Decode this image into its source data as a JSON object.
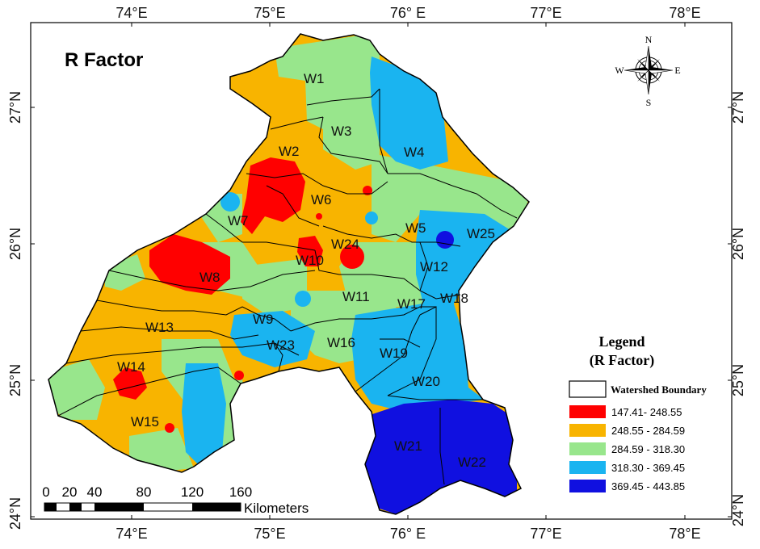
{
  "map": {
    "title": "R Factor",
    "lon_labels": [
      "74°E",
      "75°E",
      "76° E",
      "77°E",
      "78°E"
    ],
    "lat_labels": [
      "27°N",
      "26°N",
      "25°N",
      "24°N"
    ],
    "watersheds": [
      "W1",
      "W2",
      "W3",
      "W4",
      "W5",
      "W6",
      "W7",
      "W8",
      "W9",
      "W10",
      "W11",
      "W12",
      "W13",
      "W14",
      "W15",
      "W16",
      "W17",
      "W18",
      "W19",
      "W20",
      "W21",
      "W22",
      "W23",
      "W24",
      "W25"
    ]
  },
  "compass": {
    "n": "N",
    "s": "S",
    "e": "E",
    "w": "W"
  },
  "legend": {
    "title_line1": "Legend",
    "title_line2": "(R Factor)",
    "boundary_label": "Watershed Boundary",
    "classes": [
      {
        "label": "147.41- 248.55",
        "color": "#ff0000"
      },
      {
        "label": "248.55 - 284.59",
        "color": "#f8b400"
      },
      {
        "label": "284.59 - 318.30",
        "color": "#98e68c"
      },
      {
        "label": "318.30 - 369.45",
        "color": "#1ab4f0"
      },
      {
        "label": "369.45 - 443.85",
        "color": "#1010e0"
      }
    ]
  },
  "scale_bar": {
    "ticks": [
      "0",
      "20",
      "40",
      "80",
      "120",
      "160"
    ],
    "unit": "Kilometers"
  }
}
